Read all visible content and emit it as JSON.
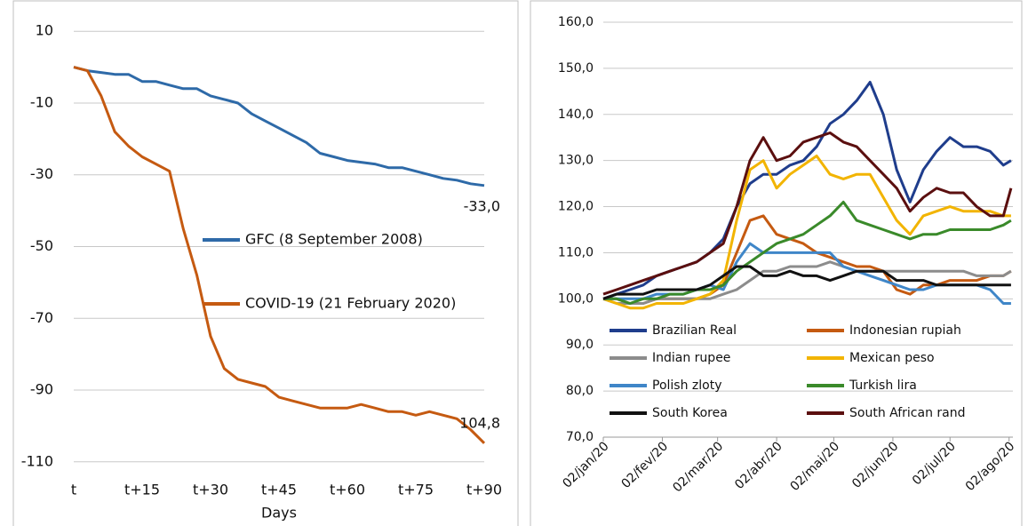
{
  "chart_data": [
    {
      "type": "line",
      "x": [
        0,
        3,
        6,
        9,
        12,
        15,
        18,
        21,
        24,
        27,
        30,
        33,
        36,
        39,
        42,
        45,
        48,
        51,
        54,
        57,
        60,
        63,
        66,
        69,
        72,
        75,
        78,
        81,
        84,
        87,
        90
      ],
      "xlim": [
        0,
        90
      ],
      "xticks": [
        {
          "value": 0,
          "label": "t"
        },
        {
          "value": 15,
          "label": "t+15"
        },
        {
          "value": 30,
          "label": "t+30"
        },
        {
          "value": 45,
          "label": "t+45"
        },
        {
          "value": 60,
          "label": "t+60"
        },
        {
          "value": 75,
          "label": "t+75"
        },
        {
          "value": 90,
          "label": "t+90"
        }
      ],
      "xlabel": "Days",
      "ylim": [
        -115,
        15
      ],
      "yticks": [
        10,
        -10,
        -30,
        -50,
        -70,
        -90,
        -110
      ],
      "grid": true,
      "legend": "center",
      "series": [
        {
          "name": "GFC (8 September 2008)",
          "color": "#2e6aa8",
          "values": [
            0,
            -1,
            -1.5,
            -2,
            -2,
            -4,
            -4,
            -5,
            -6,
            -6,
            -8,
            -9,
            -10,
            -13,
            -15,
            -17,
            -19,
            -21,
            -24,
            -25,
            -26,
            -26.5,
            -27,
            -28,
            -28,
            -29,
            -30,
            -31,
            -31.5,
            -32.5,
            -33
          ]
        },
        {
          "name": "COVID-19 (21 February 2020)",
          "color": "#c55a11",
          "values": [
            0,
            -1,
            -8,
            -18,
            -22,
            -25,
            -27,
            -29,
            -45,
            -58,
            -75,
            -84,
            -87,
            -88,
            -89,
            -92,
            -93,
            -94,
            -95,
            -95,
            -95,
            -94,
            -95,
            -96,
            -96,
            -97,
            -96,
            -97,
            -98,
            -101,
            -104.8
          ]
        }
      ],
      "annotations": [
        {
          "text": "-33,0",
          "x": 90,
          "y": -33
        },
        {
          "text": "104,8",
          "x": 90,
          "y": -104.8
        }
      ]
    },
    {
      "type": "line",
      "x": [
        "2020-01-02",
        "2020-01-09",
        "2020-01-16",
        "2020-01-23",
        "2020-01-30",
        "2020-02-06",
        "2020-02-13",
        "2020-02-20",
        "2020-02-27",
        "2020-03-05",
        "2020-03-12",
        "2020-03-19",
        "2020-03-26",
        "2020-04-02",
        "2020-04-09",
        "2020-04-16",
        "2020-04-23",
        "2020-04-30",
        "2020-05-07",
        "2020-05-14",
        "2020-05-21",
        "2020-05-28",
        "2020-06-04",
        "2020-06-11",
        "2020-06-18",
        "2020-06-25",
        "2020-07-02",
        "2020-07-09",
        "2020-07-16",
        "2020-07-23",
        "2020-07-30",
        "2020-08-03"
      ],
      "xlim": [
        "2020-01-02",
        "2020-08-04"
      ],
      "xticks": [
        {
          "value": "2020-01-02",
          "label": "02/jan/20"
        },
        {
          "value": "2020-02-02",
          "label": "02/fev/20"
        },
        {
          "value": "2020-03-02",
          "label": "02/mar/20"
        },
        {
          "value": "2020-04-02",
          "label": "02/abr/20"
        },
        {
          "value": "2020-05-02",
          "label": "02/mai/20"
        },
        {
          "value": "2020-06-02",
          "label": "02/jun/20"
        },
        {
          "value": "2020-07-02",
          "label": "02/jul/20"
        },
        {
          "value": "2020-08-02",
          "label": "02/ago/20"
        }
      ],
      "ylim": [
        70,
        160
      ],
      "yticks": [
        {
          "value": 70,
          "label": "70,0"
        },
        {
          "value": 80,
          "label": "80,0"
        },
        {
          "value": 90,
          "label": "90,0"
        },
        {
          "value": 100,
          "label": "100,0"
        },
        {
          "value": 110,
          "label": "110,0"
        },
        {
          "value": 120,
          "label": "120,0"
        },
        {
          "value": 130,
          "label": "130,0"
        },
        {
          "value": 140,
          "label": "140,0"
        },
        {
          "value": 150,
          "label": "150,0"
        },
        {
          "value": 160,
          "label": "160,0"
        }
      ],
      "grid": true,
      "legend": "bottom",
      "series": [
        {
          "name": "Brazilian Real",
          "color": "#1f3d8c",
          "values": [
            100,
            101,
            102,
            103,
            105,
            106,
            107,
            108,
            110,
            113,
            120,
            125,
            127,
            127,
            129,
            130,
            133,
            138,
            140,
            143,
            147,
            140,
            128,
            121,
            128,
            132,
            135,
            133,
            133,
            132,
            129,
            130
          ]
        },
        {
          "name": "Indonesian rupiah",
          "color": "#c55a11",
          "values": [
            100,
            100,
            99,
            99,
            100,
            100,
            100,
            100,
            101,
            103,
            110,
            117,
            118,
            114,
            113,
            112,
            110,
            109,
            108,
            107,
            107,
            106,
            102,
            101,
            103,
            103,
            104,
            104,
            104,
            105,
            105,
            106
          ]
        },
        {
          "name": "Indian rupee",
          "color": "#8c8c8c",
          "values": [
            100,
            99,
            99,
            99,
            100,
            100,
            100,
            100,
            100,
            101,
            102,
            104,
            106,
            106,
            107,
            107,
            107,
            108,
            107,
            106,
            106,
            106,
            106,
            106,
            106,
            106,
            106,
            106,
            105,
            105,
            105,
            106
          ]
        },
        {
          "name": "Mexican peso",
          "color": "#f2b400",
          "values": [
            100,
            99,
            98,
            98,
            99,
            99,
            99,
            100,
            101,
            104,
            117,
            128,
            130,
            124,
            127,
            129,
            131,
            127,
            126,
            127,
            127,
            122,
            117,
            114,
            118,
            119,
            120,
            119,
            119,
            119,
            118,
            118
          ]
        },
        {
          "name": "Polish zloty",
          "color": "#3f86c8",
          "values": [
            100,
            100,
            100,
            100,
            101,
            101,
            101,
            102,
            103,
            102,
            108,
            112,
            110,
            110,
            110,
            110,
            110,
            110,
            107,
            106,
            105,
            104,
            103,
            102,
            102,
            103,
            103,
            103,
            103,
            102,
            99,
            99
          ]
        },
        {
          "name": "Turkish lira",
          "color": "#3a8a2a",
          "values": [
            100,
            100,
            99,
            100,
            100,
            101,
            101,
            102,
            102,
            103,
            106,
            108,
            110,
            112,
            113,
            114,
            116,
            118,
            121,
            117,
            116,
            115,
            114,
            113,
            114,
            114,
            115,
            115,
            115,
            115,
            116,
            117
          ]
        },
        {
          "name": "South Korea",
          "color": "#111111",
          "values": [
            100,
            101,
            101,
            101,
            102,
            102,
            102,
            102,
            103,
            105,
            107,
            107,
            105,
            105,
            106,
            105,
            105,
            104,
            105,
            106,
            106,
            106,
            104,
            104,
            104,
            103,
            103,
            103,
            103,
            103,
            103,
            103
          ]
        },
        {
          "name": "South African rand",
          "color": "#5b0f0f",
          "values": [
            101,
            102,
            103,
            104,
            105,
            106,
            107,
            108,
            110,
            112,
            120,
            130,
            135,
            130,
            131,
            134,
            135,
            136,
            134,
            133,
            130,
            127,
            124,
            119,
            122,
            124,
            123,
            123,
            120,
            118,
            118,
            124
          ]
        }
      ]
    }
  ]
}
